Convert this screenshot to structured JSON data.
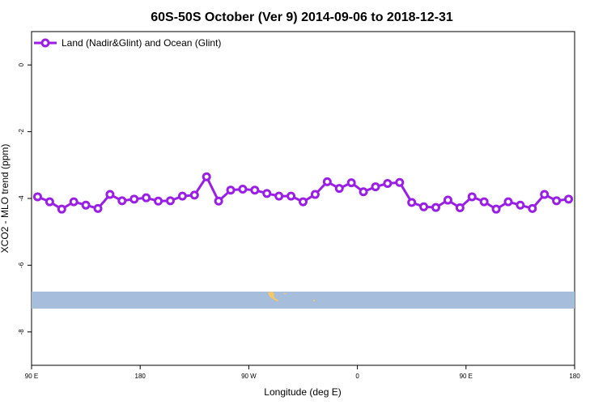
{
  "chart_data": {
    "type": "line",
    "title": "60S-50S October (Ver 9)   2014-09-06 to 2018-12-31",
    "xlabel": "Longitude (deg E)",
    "ylabel": "XCO2 - MLO trend (ppm)",
    "xlim": [
      90,
      540
    ],
    "ylim": [
      -9,
      1
    ],
    "x_ticks": [
      {
        "value": 90,
        "label": "90 E"
      },
      {
        "value": 180,
        "label": "180"
      },
      {
        "value": 270,
        "label": "90 W"
      },
      {
        "value": 360,
        "label": "0"
      },
      {
        "value": 450,
        "label": "90 E"
      },
      {
        "value": 540,
        "label": "180"
      }
    ],
    "y_ticks": [
      {
        "value": 0,
        "label": "0"
      },
      {
        "value": -2,
        "label": "-2"
      },
      {
        "value": -4,
        "label": "-4"
      },
      {
        "value": -6,
        "label": "-6"
      },
      {
        "value": -8,
        "label": "-8"
      }
    ],
    "legend": {
      "position": "top-left"
    },
    "series": [
      {
        "name": "Land (Nadir&Glint) and Ocean (Glint)",
        "color": "#9a1ee6",
        "x": [
          95,
          105,
          115,
          125,
          135,
          145,
          155,
          165,
          175,
          185,
          195,
          205,
          215,
          225,
          235,
          245,
          255,
          265,
          275,
          285,
          295,
          305,
          315,
          325,
          335,
          345,
          355,
          365,
          375,
          385,
          395,
          405,
          415,
          425,
          435,
          445,
          455,
          465,
          475,
          485,
          495,
          505,
          515,
          525,
          535
        ],
        "y": [
          -3.95,
          -4.1,
          -4.32,
          -4.1,
          -4.2,
          -4.3,
          -3.88,
          -4.07,
          -4.02,
          -3.98,
          -4.08,
          -4.07,
          -3.93,
          -3.9,
          -3.35,
          -4.08,
          -3.75,
          -3.72,
          -3.75,
          -3.85,
          -3.93,
          -3.93,
          -4.1,
          -3.88,
          -3.5,
          -3.7,
          -3.53,
          -3.8,
          -3.65,
          -3.55,
          -3.52,
          -4.12,
          -4.25,
          -4.27,
          -4.05,
          -4.28,
          -3.95,
          -4.1,
          -4.32,
          -4.1,
          -4.2,
          -4.3,
          -3.88,
          -4.07,
          -4.02
        ]
      }
    ],
    "map_strip": {
      "ocean_color": "#a7bddc",
      "land_color": "#f5c864"
    }
  }
}
